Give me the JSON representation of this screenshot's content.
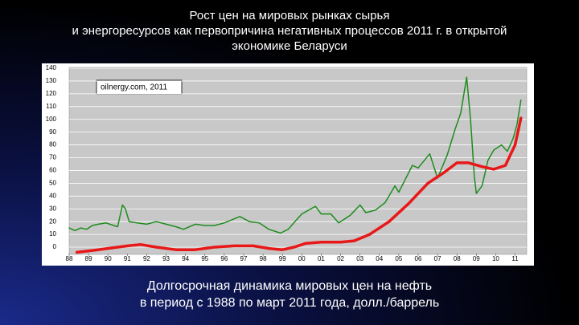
{
  "title": [
    "Рост цен на мировых рынках сырья",
    "и энергоресурсов как первопричина негативных  процессов 2011 г. в открытой",
    "экономике Беларуси"
  ],
  "caption": [
    "Долгосрочная динамика мировых цен на нефть",
    "в период с 1988 по март 2011 года, долл./баррель"
  ],
  "chart_data": {
    "type": "line",
    "source": "oilnergy.com, 2011",
    "xlim": [
      1988,
      2011.6
    ],
    "ylim": [
      -5,
      140
    ],
    "yticks": [
      0,
      10,
      20,
      30,
      40,
      50,
      60,
      70,
      80,
      90,
      100,
      110,
      120,
      130,
      140
    ],
    "xticks": [
      {
        "value": 1988,
        "label": "88"
      },
      {
        "value": 1989,
        "label": "89"
      },
      {
        "value": 1990,
        "label": "90"
      },
      {
        "value": 1991,
        "label": "91"
      },
      {
        "value": 1992,
        "label": "92"
      },
      {
        "value": 1993,
        "label": "93"
      },
      {
        "value": 1994,
        "label": "94"
      },
      {
        "value": 1995,
        "label": "95"
      },
      {
        "value": 1996,
        "label": "96"
      },
      {
        "value": 1997,
        "label": "97"
      },
      {
        "value": 1998,
        "label": "98"
      },
      {
        "value": 1999,
        "label": "99"
      },
      {
        "value": 2000,
        "label": "00"
      },
      {
        "value": 2001,
        "label": "01"
      },
      {
        "value": 2002,
        "label": "02"
      },
      {
        "value": 2003,
        "label": "03"
      },
      {
        "value": 2004,
        "label": "04"
      },
      {
        "value": 2005,
        "label": "05"
      },
      {
        "value": 2006,
        "label": "06"
      },
      {
        "value": 2007,
        "label": "07"
      },
      {
        "value": 2008,
        "label": "08"
      },
      {
        "value": 2009,
        "label": "09"
      },
      {
        "value": 2010,
        "label": "10"
      },
      {
        "value": 2011,
        "label": "11"
      }
    ],
    "grid": true,
    "series": [
      {
        "color": "#1e8c1e",
        "width": 1.5,
        "x": [
          1988.0,
          1988.3,
          1988.6,
          1988.9,
          1989.2,
          1989.5,
          1989.9,
          1990.3,
          1990.5,
          1990.75,
          1990.9,
          1991.1,
          1991.5,
          1992.0,
          1992.5,
          1993.0,
          1993.5,
          1993.9,
          1994.5,
          1995.0,
          1995.5,
          1996.0,
          1996.8,
          1997.3,
          1997.8,
          1998.3,
          1998.9,
          1999.3,
          1999.7,
          2000.0,
          2000.7,
          2001.0,
          2001.5,
          2001.9,
          2002.5,
          2003.0,
          2003.3,
          2003.8,
          2004.3,
          2004.8,
          2005.0,
          2005.7,
          2006.0,
          2006.6,
          2007.0,
          2007.5,
          2007.9,
          2008.2,
          2008.5,
          2008.7,
          2008.9,
          2009.0,
          2009.3,
          2009.6,
          2009.9,
          2010.3,
          2010.6,
          2010.9,
          2011.1,
          2011.3
        ],
        "values": [
          15,
          13,
          15,
          14,
          17,
          18,
          19,
          17,
          16,
          33,
          30,
          20,
          19,
          18,
          20,
          18,
          16,
          14,
          18,
          17,
          17,
          19,
          24,
          20,
          19,
          14,
          11,
          14,
          21,
          26,
          32,
          26,
          26,
          19,
          25,
          33,
          27,
          29,
          35,
          48,
          43,
          64,
          62,
          73,
          54,
          72,
          92,
          105,
          133,
          100,
          55,
          42,
          48,
          68,
          76,
          80,
          75,
          85,
          96,
          115
        ]
      },
      {
        "color": "#e81818",
        "width": 3.5,
        "x": [
          1988.4,
          1989.5,
          1990.5,
          1991.0,
          1991.7,
          1992.5,
          1993.5,
          1994.5,
          1995.5,
          1996.5,
          1997.5,
          1998.3,
          1999.0,
          1999.6,
          2000.2,
          2001.0,
          2002.0,
          2002.7,
          2003.5,
          2004.5,
          2005.5,
          2006.5,
          2007.3,
          2008.0,
          2008.6,
          2009.3,
          2009.9,
          2010.5,
          2011.0,
          2011.3
        ],
        "values": [
          -4,
          -2,
          0,
          1,
          2,
          0,
          -2,
          -2,
          0,
          1,
          1,
          -1,
          -2,
          0,
          3,
          4,
          4,
          5,
          10,
          20,
          34,
          50,
          58,
          66,
          66,
          63,
          61,
          64,
          80,
          101
        ]
      }
    ]
  }
}
